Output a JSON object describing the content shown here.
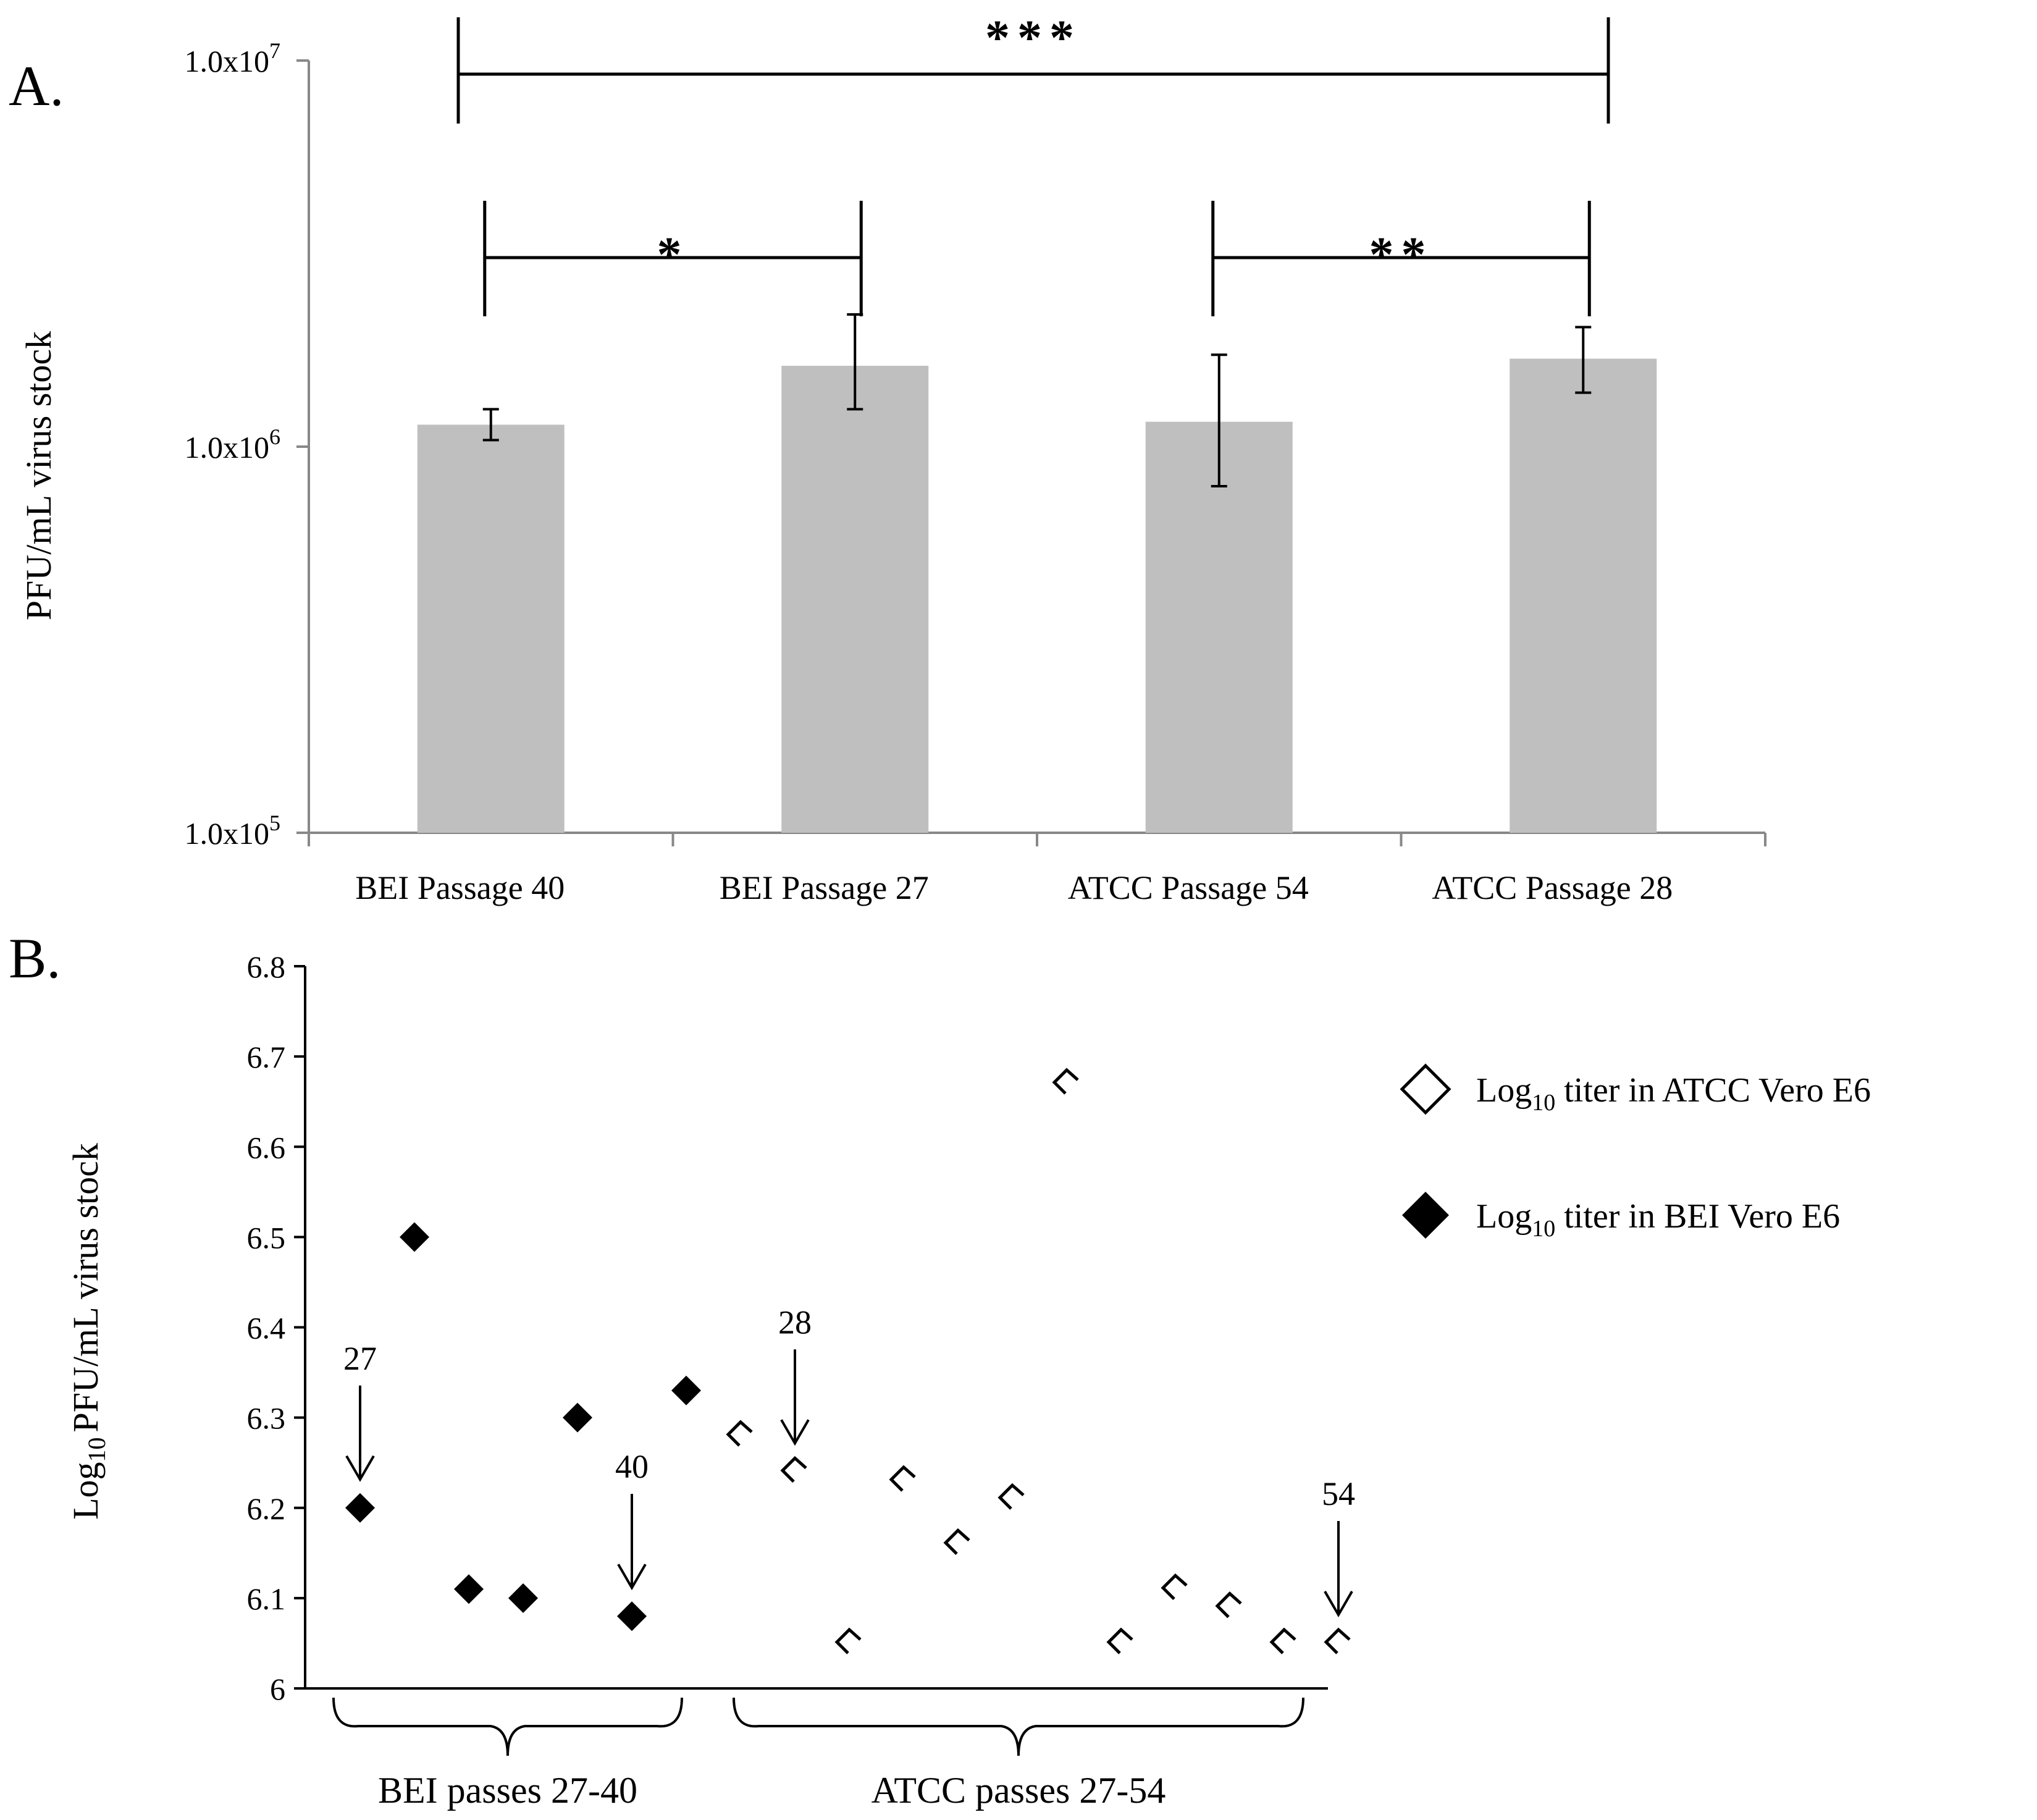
{
  "colors": {
    "bar": "#bfbfbf",
    "axis": "#888888",
    "ink": "#000000"
  },
  "chart_data": [
    {
      "panel": "A.",
      "type": "bar",
      "scale": "log",
      "ylabel": "PFU/mL virus stock",
      "ylim": [
        100000,
        10000000
      ],
      "yticks": [
        {
          "value": 100000,
          "label": "1.0x10",
          "exp": "5"
        },
        {
          "value": 1000000,
          "label": "1.0x10",
          "exp": "6"
        },
        {
          "value": 10000000,
          "label": "1.0x10",
          "exp": "7"
        }
      ],
      "categories": [
        "BEI Passage 40",
        "BEI Passage 27",
        "ATCC Passage 54",
        "ATCC Passage 28"
      ],
      "values": [
        1140000,
        1620000,
        1160000,
        1690000
      ],
      "error_low": [
        1040000,
        1250000,
        790000,
        1380000
      ],
      "error_high": [
        1250000,
        2200000,
        1730000,
        2040000
      ],
      "significance": [
        {
          "from": 0,
          "to": 1,
          "label": "*"
        },
        {
          "from": 2,
          "to": 3,
          "label": "**"
        },
        {
          "from": 0,
          "to": 3,
          "label": "***"
        }
      ]
    },
    {
      "panel": "B.",
      "type": "scatter",
      "ylabel_main": "Log",
      "ylabel_sub": "10",
      "ylabel_rest": "PFU/mL virus stock",
      "ylim": [
        6,
        6.8
      ],
      "yticks": [
        "6",
        "6.1",
        "6.2",
        "6.3",
        "6.4",
        "6.5",
        "6.6",
        "6.7",
        "6.8"
      ],
      "series": [
        {
          "name": "titer in BEI Vero E6",
          "marker": "filled-diamond",
          "x": [
            1,
            2,
            3,
            4,
            5,
            6,
            7
          ],
          "values": [
            6.2,
            6.5,
            6.11,
            6.1,
            6.3,
            6.08,
            6.33
          ]
        },
        {
          "name": "titer in ATCC  Vero E6",
          "marker": "open-chevron",
          "x": [
            8,
            9,
            10,
            11,
            12,
            13,
            14,
            15,
            16,
            17,
            18,
            19
          ],
          "values": [
            6.28,
            6.24,
            6.05,
            6.23,
            6.16,
            6.21,
            6.67,
            6.05,
            6.11,
            6.09,
            6.05,
            6.05
          ]
        }
      ],
      "annotations": [
        {
          "label": "27",
          "x": 1,
          "y": 6.2
        },
        {
          "label": "40",
          "x": 6,
          "y": 6.08
        },
        {
          "label": "28",
          "x": 9,
          "y": 6.24
        },
        {
          "label": "54",
          "x": 19,
          "y": 6.05
        }
      ],
      "groups": [
        {
          "label": "BEI passes 27-40",
          "x_from": 1,
          "x_to": 7
        },
        {
          "label": "ATCC passes 27-54",
          "x_from": 8,
          "x_to": 19
        }
      ],
      "legend": [
        {
          "prefix": "Log",
          "sub": "10",
          "text": " titer in ATCC  Vero E6",
          "marker": "open-diamond"
        },
        {
          "prefix": "Log",
          "sub": "10",
          "text": " titer in BEI Vero E6",
          "marker": "filled-diamond"
        }
      ]
    }
  ]
}
